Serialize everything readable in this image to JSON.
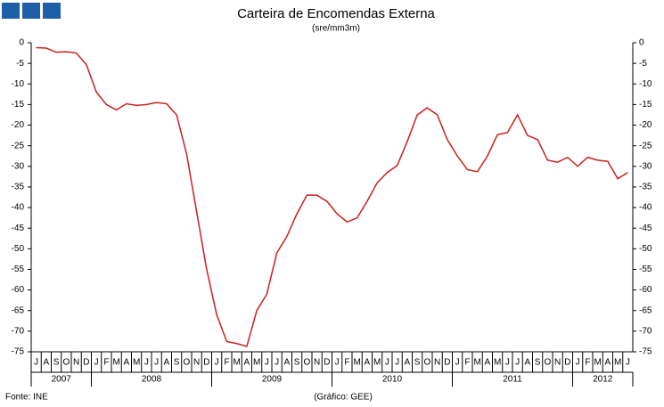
{
  "chart_data": {
    "type": "line",
    "title": "Carteira de Encomendas Externa",
    "subtitle": "(sre/mm3m)",
    "source": "Fonte: INE",
    "credit": "(Gráfico: GEE)",
    "categories": [
      "J",
      "A",
      "S",
      "O",
      "N",
      "D",
      "J",
      "F",
      "M",
      "A",
      "M",
      "J",
      "J",
      "A",
      "S",
      "O",
      "N",
      "D",
      "J",
      "F",
      "M",
      "A",
      "M",
      "J",
      "J",
      "A",
      "S",
      "O",
      "N",
      "D",
      "J",
      "F",
      "M",
      "A",
      "M",
      "J",
      "J",
      "A",
      "S",
      "O",
      "N",
      "D",
      "J",
      "F",
      "M",
      "A",
      "M",
      "J",
      "J",
      "A",
      "S",
      "O",
      "N",
      "D",
      "J",
      "F",
      "M",
      "A",
      "M",
      "J"
    ],
    "years": [
      "2007",
      "2008",
      "2009",
      "2010",
      "2011",
      "2012"
    ],
    "series": [
      {
        "color": "#cc1f1f",
        "values": [
          -1.2,
          -1.3,
          -2.3,
          -2.2,
          -2.5,
          -5.3,
          -12,
          -15,
          -16.3,
          -14.8,
          -15.2,
          -15,
          -14.5,
          -14.8,
          -17.5,
          -27,
          -41,
          -55,
          -66,
          -72.5,
          -73,
          -73.7,
          -65,
          -61,
          -51,
          -47,
          -41.5,
          -37,
          -37,
          -38.5,
          -41.5,
          -43.5,
          -42.5,
          -38.5,
          -34,
          -31.5,
          -29.8,
          -24,
          -17.5,
          -15.8,
          -17.5,
          -23.5,
          -27.5,
          -30.8,
          -31.3,
          -27.5,
          -22.3,
          -21.8,
          -17.5,
          -22.5,
          -23.5,
          -28.5,
          -29,
          -27.8,
          -30,
          -27.8,
          -28.5,
          -28.8,
          -33,
          -31.5
        ]
      }
    ],
    "ylim": [
      -75,
      0
    ],
    "yticks": [
      0,
      -5,
      -10,
      -15,
      -20,
      -25,
      -30,
      -35,
      -40,
      -45,
      -50,
      -55,
      -60,
      -65,
      -70,
      -75
    ]
  }
}
